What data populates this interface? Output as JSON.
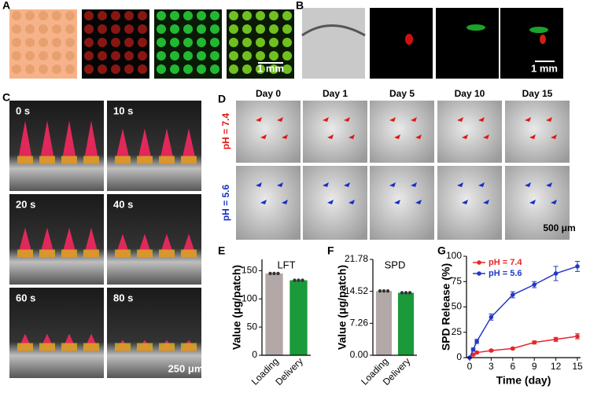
{
  "panel_labels": [
    "A",
    "B",
    "C",
    "D",
    "E",
    "F",
    "G"
  ],
  "panel_a": {
    "scale_bar": "1 mm"
  },
  "panel_b": {
    "scale_bar": "1 mm"
  },
  "panel_c": {
    "times": [
      "0 s",
      "10 s",
      "20 s",
      "40 s",
      "60 s",
      "80 s"
    ],
    "scale_bar": "250 μm"
  },
  "panel_d": {
    "days": [
      "Day 0",
      "Day 1",
      "Day 5",
      "Day 10",
      "Day 15"
    ],
    "rows": [
      "pH = 7.4",
      "pH = 5.6"
    ],
    "scale_bar": "500 μm"
  },
  "chart_data": [
    {
      "type": "bar",
      "title": "LFT",
      "y_label": "Value (μg/patch)",
      "categories": [
        "Loading",
        "Delivery"
      ],
      "values": [
        145,
        133
      ],
      "colors": [
        "#b3a8a8",
        "#1a9a3a"
      ],
      "ylim": [
        0,
        170
      ],
      "yticks": [
        0,
        50,
        100,
        150
      ]
    },
    {
      "type": "bar",
      "title": "SPD",
      "y_label": "Value (μg/patch)",
      "categories": [
        "Loading",
        "Delivery"
      ],
      "values": [
        14.6,
        14.2
      ],
      "colors": [
        "#b3a8a8",
        "#1a9a3a"
      ],
      "ylim": [
        0,
        21.78
      ],
      "yticks": [
        {
          "value": 0,
          "label": "0.00"
        },
        7.26,
        14.52,
        21.78
      ]
    },
    {
      "type": "line",
      "x_label": "Time (day)",
      "y_label": "SPD Release (%)",
      "x": [
        0,
        0.5,
        1,
        3,
        6,
        9,
        12,
        15
      ],
      "series": [
        {
          "name": "pH = 7.4",
          "color": "#e8262a",
          "values": [
            0,
            3,
            5,
            7,
            9,
            15,
            18,
            21
          ],
          "errors": [
            0,
            1,
            1,
            1,
            1,
            1.5,
            2,
            2.5
          ]
        },
        {
          "name": "pH = 5.6",
          "color": "#2339c4",
          "values": [
            0,
            8,
            16,
            40,
            62,
            72,
            83,
            90
          ],
          "errors": [
            0,
            1.5,
            2,
            3,
            3,
            3,
            7,
            5
          ]
        }
      ],
      "xlim": [
        0,
        15
      ],
      "xticks": [
        0,
        3,
        6,
        9,
        12,
        15
      ],
      "ylim": [
        0,
        100
      ],
      "yticks": [
        0,
        25,
        50,
        75,
        100
      ],
      "legend": "upper left"
    }
  ]
}
